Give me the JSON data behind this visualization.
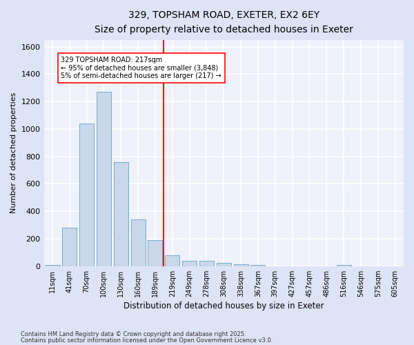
{
  "title": "329, TOPSHAM ROAD, EXETER, EX2 6EY",
  "subtitle": "Size of property relative to detached houses in Exeter",
  "xlabel": "Distribution of detached houses by size in Exeter",
  "ylabel": "Number of detached properties",
  "bar_color": "#c8d8ea",
  "bar_edge_color": "#7aaac8",
  "background_color": "#eef2fb",
  "fig_color": "#dde4f5",
  "grid_color": "#ffffff",
  "categories": [
    "11sqm",
    "41sqm",
    "70sqm",
    "100sqm",
    "130sqm",
    "160sqm",
    "189sqm",
    "219sqm",
    "249sqm",
    "278sqm",
    "308sqm",
    "338sqm",
    "367sqm",
    "397sqm",
    "427sqm",
    "457sqm",
    "486sqm",
    "516sqm",
    "546sqm",
    "575sqm",
    "605sqm"
  ],
  "values": [
    8,
    280,
    1040,
    1270,
    760,
    340,
    190,
    80,
    38,
    38,
    25,
    15,
    10,
    0,
    0,
    0,
    0,
    8,
    0,
    0,
    0
  ],
  "ylim": [
    0,
    1650
  ],
  "yticks": [
    0,
    200,
    400,
    600,
    800,
    1000,
    1200,
    1400,
    1600
  ],
  "vline_x_index": 7,
  "annotation_title": "329 TOPSHAM ROAD: 217sqm",
  "annotation_line1": "← 95% of detached houses are smaller (3,848)",
  "annotation_line2": "5% of semi-detached houses are larger (217) →",
  "footnote1": "Contains HM Land Registry data © Crown copyright and database right 2025.",
  "footnote2": "Contains public sector information licensed under the Open Government Licence v3.0."
}
